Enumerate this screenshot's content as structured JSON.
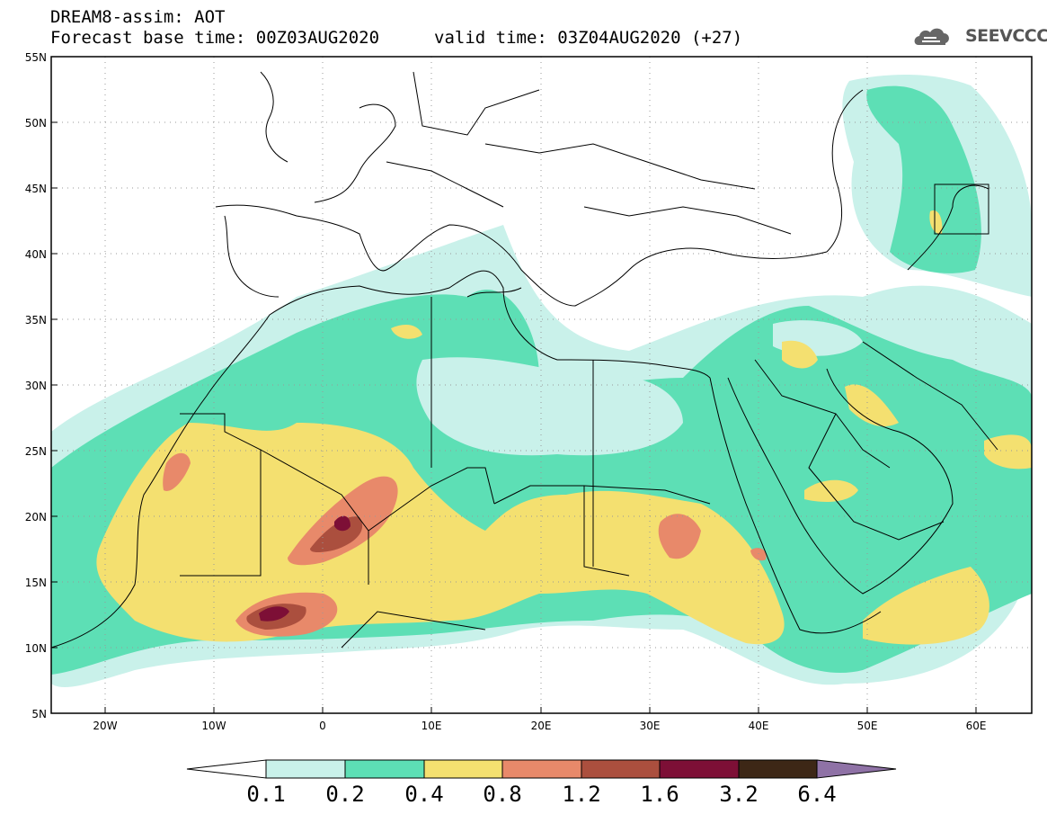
{
  "header": {
    "title": "DREAM8-assim: AOT",
    "base_time": "Forecast base time: 00Z03AUG2020",
    "valid_time": "valid time: 03Z04AUG2020 (+27)",
    "logo_text": "SEEVCCC"
  },
  "map": {
    "lat_labels": [
      "55N",
      "50N",
      "45N",
      "40N",
      "35N",
      "30N",
      "25N",
      "20N",
      "15N",
      "10N",
      "5N"
    ],
    "lon_labels": [
      "20W",
      "10W",
      "0",
      "10E",
      "20E",
      "30E",
      "40E",
      "50E",
      "60E"
    ],
    "lon_range": [
      -25,
      65
    ],
    "lat_range": [
      5,
      55
    ],
    "grid": "dotted"
  },
  "colorbar": {
    "labels": [
      "0.1",
      "0.2",
      "0.4",
      "0.8",
      "1.2",
      "1.6",
      "3.2",
      "6.4"
    ],
    "colors": [
      "#c9f1ea",
      "#5ddfb5",
      "#f4e070",
      "#e8896a",
      "#ab4f3e",
      "#7d0f36",
      "#3d2716",
      "#8f72a6"
    ]
  }
}
